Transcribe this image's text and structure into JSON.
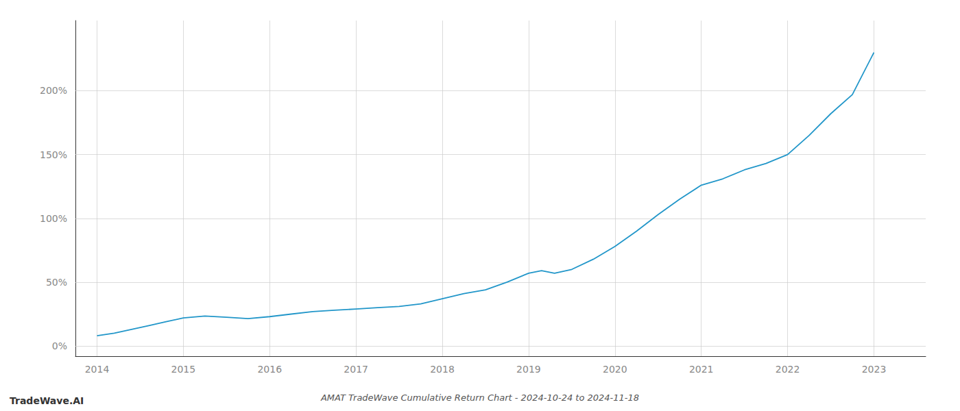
{
  "chart_data": {
    "type": "line",
    "title": "AMAT TradeWave Cumulative Return Chart - 2024-10-24 to 2024-11-18",
    "annotations": [
      "TradeWave.AI"
    ],
    "color": "#2196C9",
    "x": [
      2014.0,
      2014.2,
      2014.4,
      2014.6,
      2014.8,
      2015.0,
      2015.25,
      2015.5,
      2015.75,
      2016.0,
      2016.25,
      2016.5,
      2016.75,
      2017.0,
      2017.25,
      2017.5,
      2017.75,
      2018.0,
      2018.25,
      2018.5,
      2018.75,
      2019.0,
      2019.15,
      2019.3,
      2019.5,
      2019.75,
      2020.0,
      2020.25,
      2020.5,
      2020.75,
      2021.0,
      2021.25,
      2021.5,
      2021.75,
      2022.0,
      2022.25,
      2022.5,
      2022.75,
      2023.0
    ],
    "values": [
      8.0,
      10.0,
      13.0,
      16.0,
      19.0,
      22.0,
      23.5,
      22.5,
      21.5,
      23.0,
      25.0,
      27.0,
      28.0,
      29.0,
      30.0,
      31.0,
      33.0,
      37.0,
      41.0,
      44.0,
      50.0,
      57.0,
      59.0,
      57.0,
      60.0,
      68.0,
      78.0,
      90.0,
      103.0,
      115.0,
      126.0,
      131.0,
      138.0,
      143.0,
      150.0,
      165.0,
      182.0,
      197.0,
      230.0
    ],
    "xlim": [
      2013.75,
      2023.6
    ],
    "ylim": [
      -8,
      255
    ],
    "xticks": [
      2014,
      2015,
      2016,
      2017,
      2018,
      2019,
      2020,
      2021,
      2022,
      2023
    ],
    "yticks": [
      {
        "value": 0,
        "label": "0%"
      },
      {
        "value": 50,
        "label": "50%"
      },
      {
        "value": 100,
        "label": "100%"
      },
      {
        "value": 150,
        "label": "150%"
      },
      {
        "value": 200,
        "label": "200%"
      }
    ],
    "grid": true
  }
}
